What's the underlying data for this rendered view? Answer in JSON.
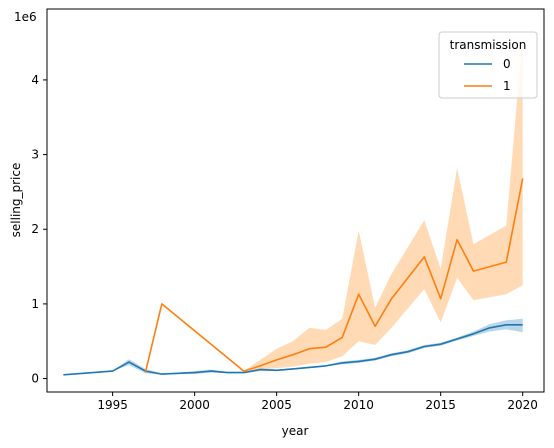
{
  "chart_data": {
    "type": "line",
    "title": "",
    "xlabel": "year",
    "ylabel": "selling_price",
    "y_scale_label": "1e6",
    "xlim": [
      1991,
      2021.3
    ],
    "ylim": [
      -0.18,
      4.95
    ],
    "x_ticks": [
      1995,
      2000,
      2005,
      2010,
      2015,
      2020
    ],
    "x_tick_labels": [
      "1995",
      "2000",
      "2005",
      "2010",
      "2015",
      "2020"
    ],
    "y_ticks": [
      0,
      1,
      2,
      3,
      4
    ],
    "y_tick_labels": [
      "0",
      "1",
      "2",
      "3",
      "4"
    ],
    "grid": false,
    "legend": {
      "title": "transmission",
      "placement": "top-right",
      "entries": [
        "0",
        "1"
      ]
    },
    "series": [
      {
        "name": "0",
        "color": "#1f77b4",
        "band_color": "#1f77b4",
        "x": [
          1992,
          1995,
          1996,
          1997,
          1998,
          1999,
          2000,
          2001,
          2002,
          2003,
          2004,
          2005,
          2006,
          2007,
          2008,
          2009,
          2010,
          2011,
          2012,
          2013,
          2014,
          2015,
          2016,
          2017,
          2018,
          2019,
          2020
        ],
        "y": [
          0.05,
          0.1,
          0.22,
          0.1,
          0.06,
          0.07,
          0.08,
          0.1,
          0.08,
          0.08,
          0.12,
          0.11,
          0.13,
          0.15,
          0.17,
          0.21,
          0.23,
          0.26,
          0.32,
          0.36,
          0.43,
          0.46,
          0.53,
          0.6,
          0.68,
          0.72,
          0.72
        ],
        "lower": [
          0.05,
          0.1,
          0.18,
          0.07,
          0.05,
          0.06,
          0.06,
          0.08,
          0.07,
          0.07,
          0.1,
          0.1,
          0.12,
          0.14,
          0.16,
          0.19,
          0.21,
          0.24,
          0.3,
          0.34,
          0.41,
          0.44,
          0.51,
          0.57,
          0.63,
          0.66,
          0.62
        ],
        "upper": [
          0.05,
          0.1,
          0.26,
          0.13,
          0.07,
          0.08,
          0.1,
          0.12,
          0.09,
          0.09,
          0.14,
          0.12,
          0.14,
          0.16,
          0.18,
          0.23,
          0.25,
          0.28,
          0.34,
          0.38,
          0.45,
          0.48,
          0.55,
          0.63,
          0.73,
          0.78,
          0.8
        ]
      },
      {
        "name": "1",
        "color": "#ff7f0e",
        "band_color": "#ffbb78",
        "x": [
          1997,
          1998,
          2003,
          2004,
          2005,
          2006,
          2007,
          2008,
          2009,
          2010,
          2011,
          2012,
          2014,
          2015,
          2016,
          2017,
          2019,
          2020
        ],
        "y": [
          0.08,
          1.0,
          0.1,
          0.17,
          0.25,
          0.32,
          0.4,
          0.42,
          0.55,
          1.13,
          0.7,
          1.07,
          1.63,
          1.07,
          1.86,
          1.44,
          1.56,
          2.68
        ],
        "lower": [
          0.08,
          1.0,
          0.1,
          0.12,
          0.14,
          0.16,
          0.2,
          0.22,
          0.3,
          0.5,
          0.45,
          0.68,
          1.2,
          0.75,
          1.35,
          1.05,
          1.13,
          1.25
        ],
        "upper": [
          0.08,
          1.0,
          0.1,
          0.25,
          0.4,
          0.5,
          0.68,
          0.65,
          0.8,
          1.98,
          0.95,
          1.4,
          2.12,
          1.47,
          2.82,
          1.8,
          2.05,
          4.6
        ]
      }
    ]
  }
}
